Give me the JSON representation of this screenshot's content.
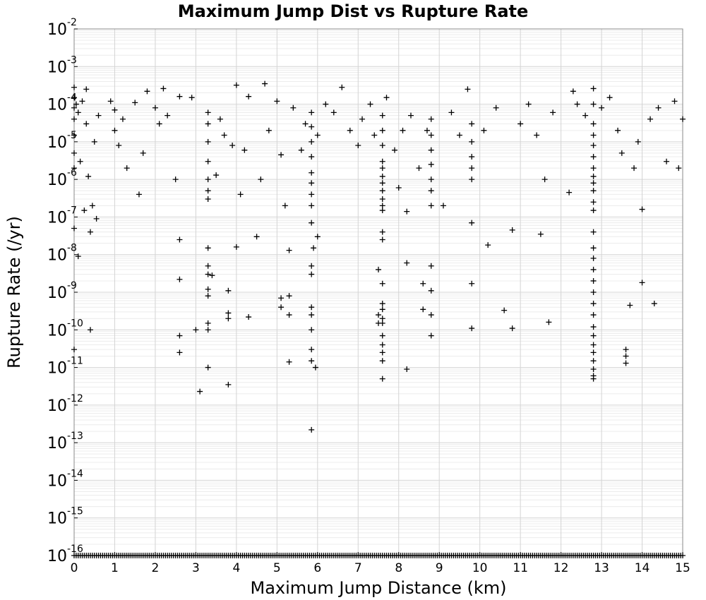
{
  "chart_data": {
    "type": "scatter",
    "title": "Maximum Jump Dist vs Rupture Rate",
    "xlabel": "Maximum Jump Distance (km)",
    "ylabel": "Rupture Rate (/yr)",
    "xlim": [
      0,
      15
    ],
    "ylim": [
      1e-16,
      0.01
    ],
    "yscale": "log",
    "marker": "+",
    "marker_color": "#000000",
    "grid": true,
    "x_ticks": [
      "0",
      "1",
      "2",
      "3",
      "4",
      "5",
      "6",
      "7",
      "8",
      "9",
      "10",
      "11",
      "12",
      "13",
      "14",
      "15"
    ],
    "y_ticks": [
      {
        "base": "10",
        "exp": "-2"
      },
      {
        "base": "10",
        "exp": "-3"
      },
      {
        "base": "10",
        "exp": "-4"
      },
      {
        "base": "10",
        "exp": "-5"
      },
      {
        "base": "10",
        "exp": "-6"
      },
      {
        "base": "10",
        "exp": "-7"
      },
      {
        "base": "10",
        "exp": "-8"
      },
      {
        "base": "10",
        "exp": "-9"
      },
      {
        "base": "10",
        "exp": "-10"
      },
      {
        "base": "10",
        "exp": "-11"
      },
      {
        "base": "10",
        "exp": "-12"
      },
      {
        "base": "10",
        "exp": "-13"
      },
      {
        "base": "10",
        "exp": "-14"
      },
      {
        "base": "10",
        "exp": "-15"
      },
      {
        "base": "10",
        "exp": "-16"
      }
    ],
    "points": [
      [
        0.0,
        0.00028
      ],
      [
        0.0,
        0.00015
      ],
      [
        0.0,
        8e-05
      ],
      [
        0.0,
        4e-05
      ],
      [
        0.0,
        1.5e-05
      ],
      [
        0.0,
        5e-06
      ],
      [
        0.0,
        2e-06
      ],
      [
        0.0,
        5e-08
      ],
      [
        0.0,
        3e-11
      ],
      [
        0.05,
        0.0001
      ],
      [
        0.1,
        6e-05
      ],
      [
        0.1,
        9e-09
      ],
      [
        0.15,
        3e-06
      ],
      [
        0.2,
        0.00012
      ],
      [
        0.25,
        1.5e-07
      ],
      [
        0.3,
        0.00025
      ],
      [
        0.3,
        3e-05
      ],
      [
        0.35,
        1.2e-06
      ],
      [
        0.4,
        4e-08
      ],
      [
        0.4,
        1e-10
      ],
      [
        0.45,
        2e-07
      ],
      [
        0.5,
        1e-05
      ],
      [
        0.55,
        9e-08
      ],
      [
        0.6,
        5e-05
      ],
      [
        0.9,
        0.00012
      ],
      [
        1.0,
        7e-05
      ],
      [
        1.0,
        2e-05
      ],
      [
        1.1,
        8e-06
      ],
      [
        1.2,
        4e-05
      ],
      [
        1.3,
        2e-06
      ],
      [
        1.5,
        0.00011
      ],
      [
        1.6,
        4e-07
      ],
      [
        1.7,
        5e-06
      ],
      [
        1.8,
        0.00022
      ],
      [
        2.0,
        8e-05
      ],
      [
        2.1,
        3e-05
      ],
      [
        2.2,
        0.00026
      ],
      [
        2.3,
        5e-05
      ],
      [
        2.5,
        1e-06
      ],
      [
        2.6,
        0.00016
      ],
      [
        2.6,
        2.5e-08
      ],
      [
        2.6,
        2.2e-09
      ],
      [
        2.6,
        7e-11
      ],
      [
        2.6,
        2.5e-11
      ],
      [
        2.9,
        0.00015
      ],
      [
        3.0,
        1e-10
      ],
      [
        3.1,
        2.3e-12
      ],
      [
        3.3,
        6e-05
      ],
      [
        3.3,
        3e-05
      ],
      [
        3.3,
        1e-05
      ],
      [
        3.3,
        3e-06
      ],
      [
        3.3,
        1e-06
      ],
      [
        3.3,
        5e-07
      ],
      [
        3.3,
        3e-07
      ],
      [
        3.3,
        1.5e-08
      ],
      [
        3.3,
        5e-09
      ],
      [
        3.3,
        3e-09
      ],
      [
        3.3,
        1.2e-09
      ],
      [
        3.3,
        8e-10
      ],
      [
        3.3,
        1.5e-10
      ],
      [
        3.3,
        1e-10
      ],
      [
        3.3,
        1e-11
      ],
      [
        3.4,
        2.8e-09
      ],
      [
        3.5,
        1.3e-06
      ],
      [
        3.6,
        4e-05
      ],
      [
        3.7,
        1.5e-05
      ],
      [
        3.8,
        1.1e-09
      ],
      [
        3.8,
        3.5e-12
      ],
      [
        3.8,
        2e-10
      ],
      [
        3.8,
        2.8e-10
      ],
      [
        3.9,
        8e-06
      ],
      [
        4.0,
        0.00032
      ],
      [
        4.0,
        1.6e-08
      ],
      [
        4.1,
        4e-07
      ],
      [
        4.2,
        6e-06
      ],
      [
        4.3,
        0.00016
      ],
      [
        4.3,
        2.2e-10
      ],
      [
        4.5,
        3e-08
      ],
      [
        4.6,
        1e-06
      ],
      [
        4.7,
        0.00035
      ],
      [
        4.8,
        2e-05
      ],
      [
        5.0,
        0.00012
      ],
      [
        5.1,
        4.5e-06
      ],
      [
        5.1,
        7e-10
      ],
      [
        5.1,
        4e-10
      ],
      [
        5.2,
        2e-07
      ],
      [
        5.3,
        1.3e-08
      ],
      [
        5.3,
        8e-10
      ],
      [
        5.3,
        2.5e-10
      ],
      [
        5.3,
        1.4e-11
      ],
      [
        5.4,
        8e-05
      ],
      [
        5.6,
        6e-06
      ],
      [
        5.7,
        3e-05
      ],
      [
        5.85,
        6e-05
      ],
      [
        5.85,
        2.5e-05
      ],
      [
        5.85,
        1e-05
      ],
      [
        5.85,
        4e-06
      ],
      [
        5.85,
        1.5e-06
      ],
      [
        5.85,
        8e-07
      ],
      [
        5.85,
        4e-07
      ],
      [
        5.85,
        2e-07
      ],
      [
        5.85,
        7e-08
      ],
      [
        5.85,
        5e-09
      ],
      [
        5.85,
        3e-09
      ],
      [
        5.85,
        4e-10
      ],
      [
        5.85,
        2.5e-10
      ],
      [
        5.85,
        1e-10
      ],
      [
        5.85,
        3e-11
      ],
      [
        5.85,
        1.5e-11
      ],
      [
        5.85,
        2.2e-13
      ],
      [
        5.9,
        1.5e-08
      ],
      [
        5.95,
        1e-11
      ],
      [
        6.0,
        3e-08
      ],
      [
        6.0,
        1.5e-05
      ],
      [
        6.2,
        0.0001
      ],
      [
        6.4,
        6e-05
      ],
      [
        6.6,
        0.00028
      ],
      [
        6.8,
        2e-05
      ],
      [
        7.0,
        8e-06
      ],
      [
        7.1,
        4e-05
      ],
      [
        7.3,
        0.0001
      ],
      [
        7.4,
        1.5e-05
      ],
      [
        7.6,
        5e-05
      ],
      [
        7.6,
        2e-05
      ],
      [
        7.6,
        8e-06
      ],
      [
        7.6,
        3e-06
      ],
      [
        7.6,
        2e-06
      ],
      [
        7.6,
        1.2e-06
      ],
      [
        7.6,
        8e-07
      ],
      [
        7.6,
        5e-07
      ],
      [
        7.6,
        3e-07
      ],
      [
        7.6,
        2e-07
      ],
      [
        7.6,
        1.5e-07
      ],
      [
        7.6,
        4e-08
      ],
      [
        7.6,
        2.5e-08
      ],
      [
        7.6,
        1.7e-09
      ],
      [
        7.6,
        5e-10
      ],
      [
        7.6,
        3.5e-10
      ],
      [
        7.6,
        2e-10
      ],
      [
        7.6,
        1.5e-10
      ],
      [
        7.6,
        7e-11
      ],
      [
        7.6,
        4e-11
      ],
      [
        7.6,
        2.5e-11
      ],
      [
        7.6,
        1.5e-11
      ],
      [
        7.6,
        5e-12
      ],
      [
        7.5,
        4e-09
      ],
      [
        7.5,
        1.5e-10
      ],
      [
        7.5,
        2.5e-10
      ],
      [
        7.7,
        0.00015
      ],
      [
        7.9,
        6e-06
      ],
      [
        8.0,
        6e-07
      ],
      [
        8.1,
        2e-05
      ],
      [
        8.2,
        1.4e-07
      ],
      [
        8.2,
        6e-09
      ],
      [
        8.2,
        9e-12
      ],
      [
        8.3,
        5e-05
      ],
      [
        8.5,
        2e-06
      ],
      [
        8.6,
        1.7e-09
      ],
      [
        8.6,
        3.5e-10
      ],
      [
        8.7,
        2e-05
      ],
      [
        8.8,
        4e-05
      ],
      [
        8.8,
        1.5e-05
      ],
      [
        8.8,
        6e-06
      ],
      [
        8.8,
        2.5e-06
      ],
      [
        8.8,
        1e-06
      ],
      [
        8.8,
        5e-07
      ],
      [
        8.8,
        2e-07
      ],
      [
        8.8,
        5e-09
      ],
      [
        8.8,
        1.1e-09
      ],
      [
        8.8,
        2.5e-10
      ],
      [
        8.8,
        7e-11
      ],
      [
        9.1,
        2e-07
      ],
      [
        9.3,
        6e-05
      ],
      [
        9.5,
        1.5e-05
      ],
      [
        9.7,
        0.00025
      ],
      [
        9.8,
        3e-05
      ],
      [
        9.8,
        1e-05
      ],
      [
        9.8,
        4e-06
      ],
      [
        9.8,
        2e-06
      ],
      [
        9.8,
        1e-06
      ],
      [
        9.8,
        7e-08
      ],
      [
        9.8,
        1.7e-09
      ],
      [
        9.8,
        1.1e-10
      ],
      [
        10.1,
        2e-05
      ],
      [
        10.2,
        1.8e-08
      ],
      [
        10.4,
        8e-05
      ],
      [
        10.6,
        3.3e-10
      ],
      [
        10.8,
        4.5e-08
      ],
      [
        10.8,
        1.1e-10
      ],
      [
        11.0,
        3e-05
      ],
      [
        11.2,
        0.0001
      ],
      [
        11.4,
        1.5e-05
      ],
      [
        11.5,
        3.5e-08
      ],
      [
        11.6,
        1e-06
      ],
      [
        11.7,
        1.6e-10
      ],
      [
        11.8,
        6e-05
      ],
      [
        12.2,
        4.5e-07
      ],
      [
        12.3,
        0.00022
      ],
      [
        12.4,
        0.0001
      ],
      [
        12.6,
        5e-05
      ],
      [
        12.8,
        0.00026
      ],
      [
        12.8,
        0.0001
      ],
      [
        12.8,
        3e-05
      ],
      [
        12.8,
        1.5e-05
      ],
      [
        12.8,
        8e-06
      ],
      [
        12.8,
        4e-06
      ],
      [
        12.8,
        2e-06
      ],
      [
        12.8,
        1.2e-06
      ],
      [
        12.8,
        8e-07
      ],
      [
        12.8,
        5e-07
      ],
      [
        12.8,
        2.5e-07
      ],
      [
        12.8,
        1.5e-07
      ],
      [
        12.8,
        4e-08
      ],
      [
        12.8,
        1.5e-08
      ],
      [
        12.8,
        8e-09
      ],
      [
        12.8,
        4e-09
      ],
      [
        12.8,
        2e-09
      ],
      [
        12.8,
        1e-09
      ],
      [
        12.8,
        5e-10
      ],
      [
        12.8,
        2.5e-10
      ],
      [
        12.8,
        1.2e-10
      ],
      [
        12.8,
        7e-11
      ],
      [
        12.8,
        4e-11
      ],
      [
        12.8,
        2.5e-11
      ],
      [
        12.8,
        1.5e-11
      ],
      [
        12.8,
        9e-12
      ],
      [
        12.8,
        6e-12
      ],
      [
        12.8,
        5e-12
      ],
      [
        13.0,
        8e-05
      ],
      [
        13.2,
        0.00015
      ],
      [
        13.4,
        2e-05
      ],
      [
        13.5,
        5e-06
      ],
      [
        13.6,
        3e-11
      ],
      [
        13.6,
        2e-11
      ],
      [
        13.6,
        1.3e-11
      ],
      [
        13.7,
        4.5e-10
      ],
      [
        13.8,
        2e-06
      ],
      [
        13.9,
        1e-05
      ],
      [
        14.0,
        1.6e-07
      ],
      [
        14.0,
        1.8e-09
      ],
      [
        14.2,
        4e-05
      ],
      [
        14.3,
        5e-10
      ],
      [
        14.4,
        8e-05
      ],
      [
        14.6,
        3e-06
      ],
      [
        14.8,
        0.00012
      ],
      [
        14.9,
        2e-06
      ],
      [
        15.0,
        4e-05
      ]
    ],
    "floor_row": {
      "y": 1e-16,
      "x_start": 0,
      "x_end": 15,
      "step": 0.05
    }
  }
}
